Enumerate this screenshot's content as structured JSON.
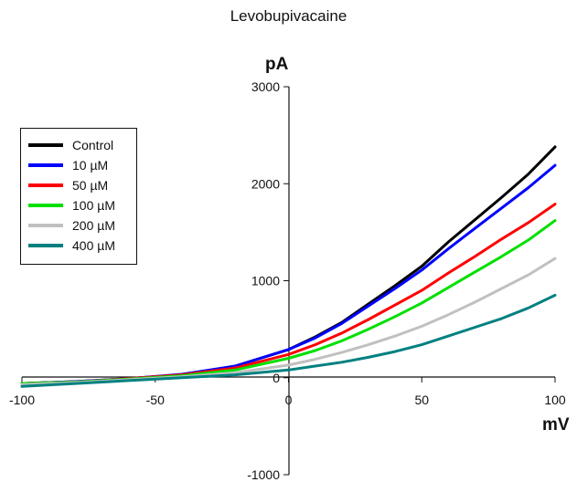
{
  "chart_data": {
    "type": "line",
    "title": "Levobupivacaine",
    "xlabel": "mV",
    "ylabel": "pA",
    "xlim": [
      -100,
      100
    ],
    "ylim": [
      -1000,
      3000
    ],
    "xticks": [
      -100,
      -50,
      0,
      50,
      100
    ],
    "yticks": [
      -1000,
      0,
      1000,
      2000,
      3000
    ],
    "xtick_labels": [
      "-100",
      "-50",
      "0",
      "50",
      "100"
    ],
    "ytick_labels": [
      "-1000",
      "0",
      "1000",
      "2000",
      "3000"
    ],
    "grid": false,
    "legend_position": "left",
    "x": [
      -100,
      -80,
      -60,
      -40,
      -20,
      0,
      10,
      20,
      30,
      40,
      50,
      60,
      70,
      80,
      90,
      100
    ],
    "series": [
      {
        "name": "Control",
        "color": "#000000",
        "values": [
          -60,
          -40,
          -10,
          30,
          120,
          290,
          420,
          570,
          760,
          950,
          1150,
          1400,
          1630,
          1860,
          2100,
          2380
        ]
      },
      {
        "name": "10 µM",
        "color": "#0000ff",
        "values": [
          -60,
          -40,
          -10,
          35,
          120,
          290,
          410,
          560,
          740,
          920,
          1110,
          1330,
          1540,
          1750,
          1960,
          2190
        ]
      },
      {
        "name": "50 µM",
        "color": "#ff0000",
        "values": [
          -60,
          -45,
          -10,
          30,
          100,
          240,
          340,
          460,
          600,
          750,
          900,
          1080,
          1250,
          1430,
          1600,
          1790
        ]
      },
      {
        "name": "100 µM",
        "color": "#00e000",
        "values": [
          -60,
          -45,
          -15,
          20,
          80,
          200,
          280,
          380,
          500,
          630,
          770,
          930,
          1090,
          1250,
          1420,
          1620
        ]
      },
      {
        "name": "200 µM",
        "color": "#c0c0c0",
        "values": [
          -70,
          -50,
          -20,
          10,
          50,
          130,
          190,
          260,
          340,
          430,
          530,
          650,
          780,
          920,
          1060,
          1230
        ]
      },
      {
        "name": "400 µM",
        "color": "#008080",
        "values": [
          -90,
          -60,
          -30,
          0,
          30,
          80,
          120,
          160,
          210,
          270,
          340,
          430,
          520,
          610,
          720,
          850
        ]
      }
    ]
  }
}
